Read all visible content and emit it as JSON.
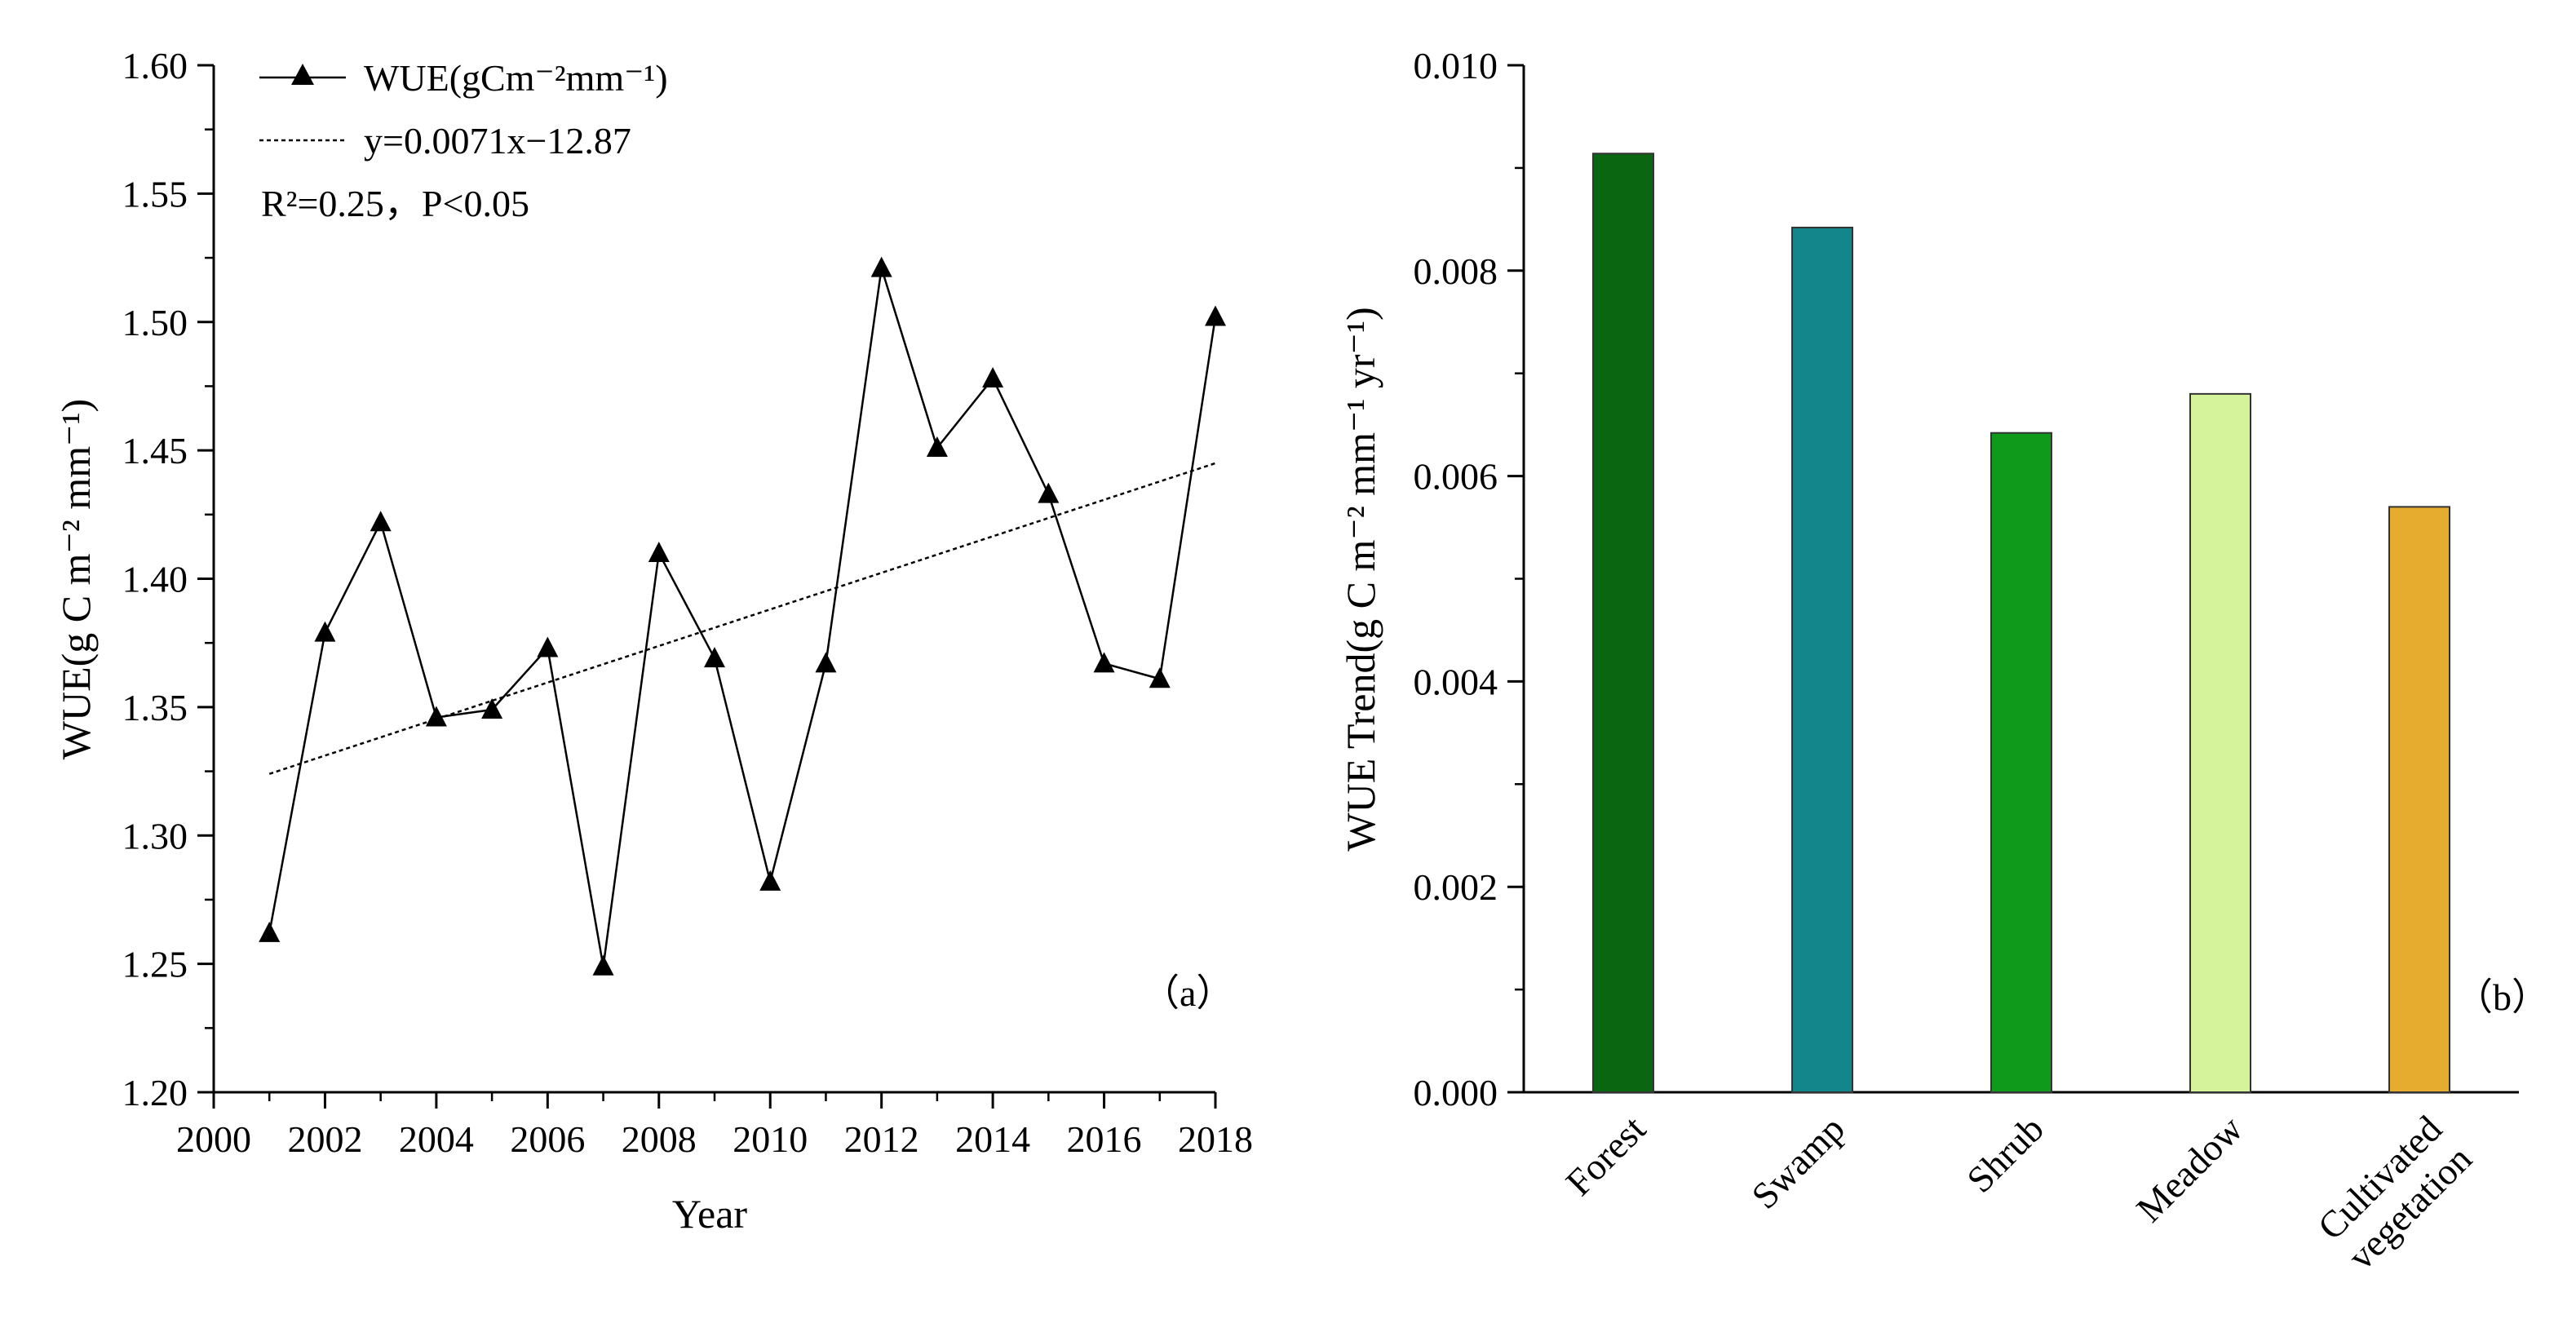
{
  "chart_data": [
    {
      "type": "line",
      "panel_label": "（a）",
      "xlabel": "Year",
      "ylabel": "WUE(g C m⁻² mm⁻¹)",
      "xlim": [
        2000,
        2018
      ],
      "ylim": [
        1.2,
        1.6
      ],
      "xticks": [
        "2000",
        "2002",
        "2004",
        "2006",
        "2008",
        "2010",
        "2012",
        "2014",
        "2016",
        "2018"
      ],
      "yticks": [
        "1.20",
        "1.25",
        "1.30",
        "1.35",
        "1.40",
        "1.45",
        "1.50",
        "1.55",
        "1.60"
      ],
      "series": [
        {
          "name": "WUE(gCm⁻²mm⁻¹)",
          "marker": "triangle",
          "x": [
            2001,
            2002,
            2003,
            2004,
            2005,
            2006,
            2007,
            2008,
            2009,
            2010,
            2011,
            2012,
            2013,
            2014,
            2015,
            2016,
            2017,
            2018
          ],
          "y": [
            1.262,
            1.379,
            1.422,
            1.346,
            1.349,
            1.373,
            1.249,
            1.41,
            1.369,
            1.282,
            1.367,
            1.521,
            1.451,
            1.478,
            1.433,
            1.367,
            1.361,
            1.502
          ]
        }
      ],
      "trend": {
        "label": "y=0.0071x−12.87",
        "slope": 0.0071,
        "x_range": [
          2001,
          2018
        ],
        "y_range": [
          1.324,
          1.445
        ]
      },
      "stats_label": "R²=0.25，P<0.05"
    },
    {
      "type": "bar",
      "panel_label": "（b）",
      "xlabel": "",
      "ylabel": "WUE Trend(g C m⁻² mm⁻¹ yr⁻¹)",
      "ylim": [
        0,
        0.01
      ],
      "yticks": [
        "0.000",
        "0.002",
        "0.004",
        "0.006",
        "0.008",
        "0.010"
      ],
      "categories": [
        "Forest",
        "Swamp",
        "Shrub",
        "Meadow",
        "Cultivated vegetation"
      ],
      "category_lines": [
        [
          "Forest"
        ],
        [
          "Swamp"
        ],
        [
          "Shrub"
        ],
        [
          "Meadow"
        ],
        [
          "Cultivated",
          "vegetation"
        ]
      ],
      "values": [
        0.00914,
        0.00842,
        0.00642,
        0.0068,
        0.0057
      ],
      "colors": [
        "#0a6610",
        "#12868a",
        "#0f9a1c",
        "#d4f39a",
        "#e6ac30"
      ]
    }
  ]
}
